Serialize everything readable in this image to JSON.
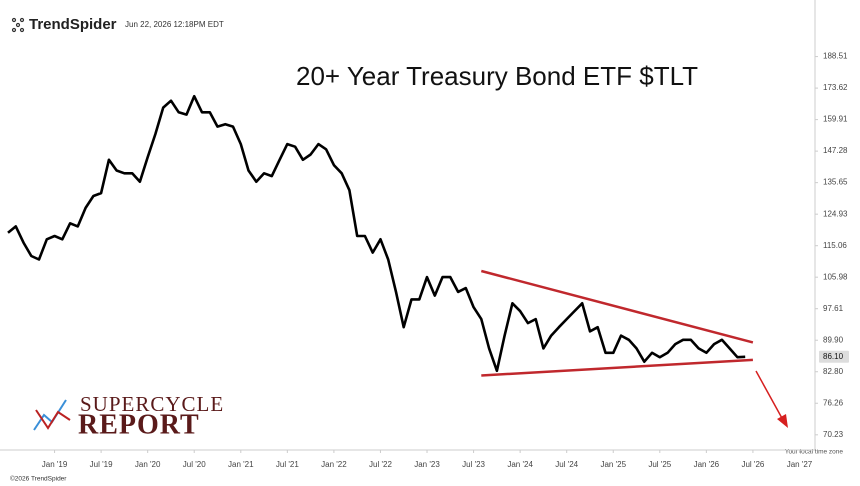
{
  "chart_data": {
    "type": "line",
    "title": "20+ Year Treasury Bond ETF $TLT",
    "brand": "TrendSpider",
    "timestamp": "Jun 22, 2026 12:18PM EDT",
    "copyright": "©2026 TrendSpider",
    "timezone_note": "Your local time zone",
    "watermark": [
      "SUPERCYCLE",
      "REPORT"
    ],
    "log_scale": true,
    "color": "#000000",
    "x": [
      "2018-07",
      "2018-08",
      "2018-09",
      "2018-10",
      "2018-11",
      "2018-12",
      "2019-01",
      "2019-02",
      "2019-03",
      "2019-04",
      "2019-05",
      "2019-06",
      "2019-07",
      "2019-08",
      "2019-09",
      "2019-10",
      "2019-11",
      "2019-12",
      "2020-01",
      "2020-02",
      "2020-03",
      "2020-04",
      "2020-05",
      "2020-06",
      "2020-07",
      "2020-08",
      "2020-09",
      "2020-10",
      "2020-11",
      "2020-12",
      "2021-01",
      "2021-02",
      "2021-03",
      "2021-04",
      "2021-05",
      "2021-06",
      "2021-07",
      "2021-08",
      "2021-09",
      "2021-10",
      "2021-11",
      "2021-12",
      "2022-01",
      "2022-02",
      "2022-03",
      "2022-04",
      "2022-05",
      "2022-06",
      "2022-07",
      "2022-08",
      "2022-09",
      "2022-10",
      "2022-11",
      "2022-12",
      "2023-01",
      "2023-02",
      "2023-03",
      "2023-04",
      "2023-05",
      "2023-06",
      "2023-07",
      "2023-08",
      "2023-09",
      "2023-10",
      "2023-11",
      "2023-12",
      "2024-01",
      "2024-02",
      "2024-03",
      "2024-04",
      "2024-05",
      "2024-06",
      "2024-07",
      "2024-08",
      "2024-09",
      "2024-10",
      "2024-11",
      "2024-12",
      "2025-01",
      "2025-02",
      "2025-03",
      "2025-04",
      "2025-05",
      "2025-06",
      "2025-07",
      "2025-08",
      "2025-09",
      "2025-10",
      "2025-11",
      "2025-12",
      "2026-01",
      "2026-02",
      "2026-03",
      "2026-04",
      "2026-05",
      "2026-06"
    ],
    "values": [
      119,
      121,
      116,
      112,
      111,
      117,
      118,
      117,
      122,
      121,
      127,
      131,
      132,
      144,
      140,
      139,
      139,
      136,
      145,
      154,
      165,
      168,
      163,
      162,
      170,
      163,
      163,
      157,
      158,
      157,
      150,
      140,
      136,
      139,
      138,
      144,
      150,
      149,
      144,
      146,
      150,
      148,
      142,
      139,
      133,
      118,
      118,
      113,
      117,
      111,
      102,
      93,
      100,
      100,
      106,
      101,
      106,
      106,
      102,
      103,
      98,
      95,
      88,
      83,
      91,
      99,
      97,
      94,
      95,
      88,
      91,
      93,
      95,
      97,
      99,
      92,
      93,
      87,
      87,
      91,
      90,
      88,
      85,
      87,
      86,
      87,
      89,
      90,
      90,
      88,
      87,
      89,
      90,
      88,
      86,
      86.1
    ],
    "value_labels": [
      null,
      null,
      null,
      null,
      null,
      null,
      null,
      null,
      null,
      null,
      null,
      null,
      null,
      null,
      null,
      null,
      null,
      null,
      null,
      null,
      null,
      null,
      null,
      null,
      null,
      null,
      null,
      null,
      null,
      null,
      null,
      null,
      null,
      null,
      null,
      null,
      null,
      null,
      null,
      null,
      null,
      null,
      null,
      null,
      null,
      null,
      null,
      null,
      null,
      null,
      null,
      null,
      null,
      null,
      null,
      null,
      null,
      null,
      null,
      null,
      null,
      null,
      null,
      null,
      null,
      null,
      null,
      null,
      null,
      null,
      null,
      null,
      null,
      null,
      null,
      null,
      null,
      null,
      null,
      null,
      null,
      null,
      null,
      null,
      null,
      null,
      null,
      null,
      null,
      null,
      null,
      null,
      null,
      null,
      null,
      "86.10"
    ],
    "trendlines": [
      {
        "color": "#c0282d",
        "x": [
          "2023-08",
          "2026-07"
        ],
        "values": [
          107.7,
          89.4
        ]
      },
      {
        "color": "#c0282d",
        "x": [
          "2023-08",
          "2026-07"
        ],
        "values": [
          82.0,
          85.4
        ]
      }
    ],
    "xlim": [
      "2018-07",
      "2027-03"
    ],
    "xticks": [
      {
        "value": "2019-01",
        "label": "Jan '19"
      },
      {
        "value": "2019-07",
        "label": "Jul '19"
      },
      {
        "value": "2020-01",
        "label": "Jan '20"
      },
      {
        "value": "2020-07",
        "label": "Jul '20"
      },
      {
        "value": "2021-01",
        "label": "Jan '21"
      },
      {
        "value": "2021-07",
        "label": "Jul '21"
      },
      {
        "value": "2022-01",
        "label": "Jan '22"
      },
      {
        "value": "2022-07",
        "label": "Jul '22"
      },
      {
        "value": "2023-01",
        "label": "Jan '23"
      },
      {
        "value": "2023-07",
        "label": "Jul '23"
      },
      {
        "value": "2024-01",
        "label": "Jan '24"
      },
      {
        "value": "2024-07",
        "label": "Jul '24"
      },
      {
        "value": "2025-01",
        "label": "Jan '25"
      },
      {
        "value": "2025-07",
        "label": "Jul '25"
      },
      {
        "value": "2026-01",
        "label": "Jan '26"
      },
      {
        "value": "2026-07",
        "label": "Jul '26"
      },
      {
        "value": "2027-01",
        "label": "Jan '27"
      }
    ],
    "ylim": [
      67.5,
      214
    ],
    "yticks": [
      188.51,
      173.62,
      159.91,
      147.28,
      135.65,
      124.93,
      115.06,
      105.98,
      97.61,
      {
        "value": 89.9,
        "label": "89.90"
      },
      {
        "value": 82.8,
        "label": "82.80"
      },
      76.26,
      70.23
    ]
  }
}
